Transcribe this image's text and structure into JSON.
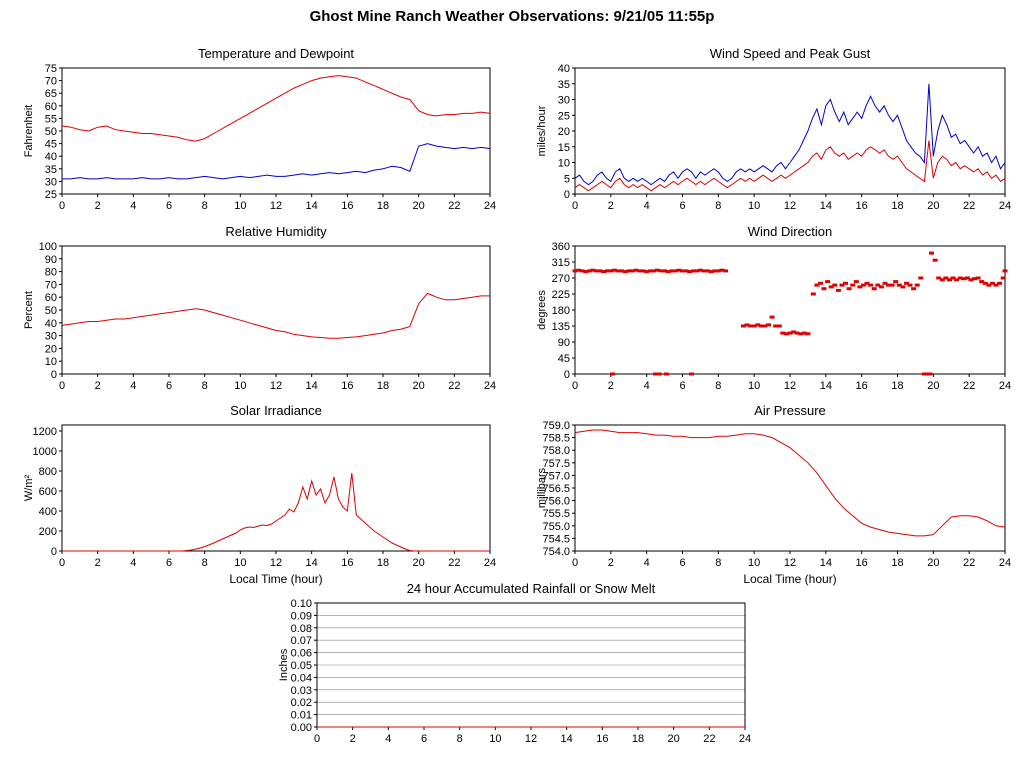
{
  "page": {
    "title": "Ghost Mine Ranch Weather Observations: 9/21/05 11:55p",
    "background": "#ffffff"
  },
  "colors": {
    "red": "#dd0000",
    "blue": "#0000cc",
    "axis": "#000000",
    "grid": "#888888"
  },
  "chart_data": [
    {
      "id": "temp-dew",
      "type": "line",
      "title": "Temperature and Dewpoint",
      "ylabel": "Fahrenheit",
      "xlabel": "",
      "xlim": [
        0,
        24
      ],
      "xtick": 2,
      "ylim": [
        25,
        75
      ],
      "ytick": 5,
      "ytick_decimals": 0,
      "x_unit": "hour",
      "series": [
        {
          "name": "Temperature",
          "color": "#dd0000",
          "x_start": 0,
          "x_step": 0.5,
          "values": [
            52,
            51.5,
            50.5,
            50,
            51.5,
            52,
            50.5,
            50,
            49.5,
            49,
            49,
            48.5,
            48,
            47.5,
            46.5,
            46,
            47,
            49,
            51,
            53,
            55,
            57,
            59,
            61,
            63,
            65,
            67,
            68.5,
            70,
            71,
            71.5,
            72,
            71.5,
            71,
            69.5,
            68,
            66.5,
            65,
            63.5,
            62.5,
            58,
            56.5,
            56,
            56.5,
            56.5,
            57,
            57,
            57.5,
            57
          ]
        },
        {
          "name": "Dewpoint",
          "color": "#0000cc",
          "x_start": 0,
          "x_step": 0.5,
          "values": [
            31,
            31,
            31.5,
            31,
            31,
            31.5,
            31,
            31,
            31,
            31.5,
            31,
            31,
            31.5,
            31,
            31,
            31.5,
            32,
            31.5,
            31,
            31.5,
            32,
            31.5,
            32,
            32.5,
            32,
            32,
            32.5,
            33,
            32.5,
            33,
            33.5,
            33,
            33.5,
            34,
            33.5,
            34.5,
            35,
            36,
            35.5,
            34,
            44,
            45,
            44,
            43.5,
            43,
            43.5,
            43,
            43.5,
            43
          ]
        }
      ]
    },
    {
      "id": "wind-speed",
      "type": "line",
      "title": "Wind Speed and Peak Gust",
      "ylabel": "miles/hour",
      "xlabel": "",
      "xlim": [
        0,
        24
      ],
      "xtick": 2,
      "ylim": [
        0,
        40
      ],
      "ytick": 5,
      "ytick_decimals": 0,
      "x_unit": "hour",
      "series": [
        {
          "name": "Peak Gust",
          "color": "#0000cc",
          "x_start": 0,
          "x_step": 0.25,
          "values": [
            5,
            6,
            4,
            3,
            4,
            6,
            7,
            5,
            4,
            7,
            8,
            5,
            4,
            5,
            4,
            5,
            4,
            3,
            4,
            5,
            4,
            6,
            7,
            5,
            7,
            8,
            7,
            5,
            7,
            6,
            7,
            8,
            7,
            5,
            4,
            5,
            7,
            8,
            7,
            8,
            7,
            8,
            9,
            8,
            7,
            9,
            10,
            8,
            10,
            12,
            14,
            17,
            20,
            24,
            27,
            22,
            28,
            30,
            26,
            23,
            26,
            22,
            24,
            26,
            24,
            28,
            31,
            28,
            26,
            28,
            25,
            23,
            25,
            21,
            17,
            15,
            13,
            12,
            10,
            35,
            12,
            20,
            25,
            22,
            18,
            19,
            16,
            17,
            15,
            13,
            15,
            12,
            13,
            10,
            12,
            8,
            10
          ]
        },
        {
          "name": "Wind Speed",
          "color": "#dd0000",
          "x_start": 0,
          "x_step": 0.25,
          "values": [
            2,
            3,
            2,
            1,
            2,
            3,
            4,
            3,
            2,
            4,
            5,
            3,
            2,
            3,
            2,
            3,
            2,
            1,
            2,
            3,
            2,
            3,
            4,
            3,
            4,
            5,
            4,
            3,
            4,
            3,
            4,
            5,
            4,
            3,
            2,
            3,
            4,
            5,
            4,
            5,
            4,
            5,
            6,
            5,
            4,
            5,
            6,
            5,
            6,
            7,
            8,
            9,
            10,
            12,
            13,
            11,
            14,
            15,
            13,
            12,
            13,
            11,
            12,
            13,
            12,
            14,
            15,
            14,
            13,
            14,
            12,
            11,
            12,
            10,
            8,
            7,
            6,
            5,
            4,
            17,
            5,
            10,
            12,
            11,
            9,
            10,
            8,
            9,
            8,
            7,
            8,
            6,
            7,
            5,
            6,
            4,
            5
          ]
        }
      ]
    },
    {
      "id": "humidity",
      "type": "line",
      "title": "Relative Humidity",
      "ylabel": "Percent",
      "xlabel": "",
      "xlim": [
        0,
        24
      ],
      "xtick": 2,
      "ylim": [
        0,
        100
      ],
      "ytick": 10,
      "ytick_decimals": 0,
      "x_unit": "hour",
      "series": [
        {
          "name": "Relative Humidity",
          "color": "#dd0000",
          "x_start": 0,
          "x_step": 0.5,
          "values": [
            38,
            39,
            40,
            41,
            41,
            42,
            43,
            43,
            44,
            45,
            46,
            47,
            48,
            49,
            50,
            51,
            50,
            48,
            46,
            44,
            42,
            40,
            38,
            36,
            34,
            33,
            31,
            30,
            29,
            28.5,
            28,
            28,
            28.5,
            29,
            30,
            31,
            32,
            34,
            35,
            37,
            55,
            63,
            60,
            58,
            58,
            59,
            60,
            61,
            61
          ]
        }
      ]
    },
    {
      "id": "wind-dir",
      "type": "scatter",
      "title": "Wind Direction",
      "ylabel": "degrees",
      "xlabel": "",
      "xlim": [
        0,
        24
      ],
      "xtick": 2,
      "ylim": [
        0,
        360
      ],
      "ytick": 45,
      "ytick_decimals": 0,
      "x_unit": "hour",
      "color": "#dd0000",
      "points": [
        [
          0,
          290
        ],
        [
          0.2,
          292
        ],
        [
          0.4,
          290
        ],
        [
          0.6,
          288
        ],
        [
          0.8,
          290
        ],
        [
          1,
          292
        ],
        [
          1.2,
          290
        ],
        [
          1.4,
          290
        ],
        [
          1.6,
          288
        ],
        [
          1.8,
          290
        ],
        [
          2,
          290
        ],
        [
          2.2,
          292
        ],
        [
          2.4,
          290
        ],
        [
          2.6,
          290
        ],
        [
          2.8,
          288
        ],
        [
          3,
          290
        ],
        [
          3.2,
          290
        ],
        [
          3.4,
          292
        ],
        [
          3.6,
          290
        ],
        [
          3.8,
          290
        ],
        [
          4,
          288
        ],
        [
          4.2,
          290
        ],
        [
          4.4,
          290
        ],
        [
          4.6,
          292
        ],
        [
          4.8,
          290
        ],
        [
          5,
          290
        ],
        [
          5.2,
          288
        ],
        [
          5.4,
          290
        ],
        [
          5.6,
          290
        ],
        [
          5.8,
          292
        ],
        [
          6,
          290
        ],
        [
          6.2,
          290
        ],
        [
          6.4,
          288
        ],
        [
          6.6,
          290
        ],
        [
          6.8,
          290
        ],
        [
          7,
          292
        ],
        [
          7.2,
          290
        ],
        [
          7.4,
          290
        ],
        [
          7.6,
          288
        ],
        [
          7.8,
          290
        ],
        [
          8,
          290
        ],
        [
          8.2,
          292
        ],
        [
          8.4,
          290
        ],
        [
          2.1,
          0
        ],
        [
          4.5,
          0
        ],
        [
          4.7,
          0
        ],
        [
          5.1,
          0
        ],
        [
          6.5,
          0
        ],
        [
          9.4,
          135
        ],
        [
          9.6,
          138
        ],
        [
          9.8,
          135
        ],
        [
          10,
          135
        ],
        [
          10.2,
          138
        ],
        [
          10.4,
          135
        ],
        [
          10.6,
          135
        ],
        [
          10.8,
          138
        ],
        [
          11,
          160
        ],
        [
          11.2,
          135
        ],
        [
          11.4,
          135
        ],
        [
          11.6,
          115
        ],
        [
          11.8,
          113
        ],
        [
          12,
          115
        ],
        [
          12.2,
          118
        ],
        [
          12.4,
          115
        ],
        [
          12.6,
          113
        ],
        [
          12.8,
          115
        ],
        [
          13,
          113
        ],
        [
          13.3,
          225
        ],
        [
          13.5,
          250
        ],
        [
          13.7,
          255
        ],
        [
          13.9,
          240
        ],
        [
          14.1,
          260
        ],
        [
          14.3,
          245
        ],
        [
          14.5,
          250
        ],
        [
          14.7,
          235
        ],
        [
          14.9,
          250
        ],
        [
          15.1,
          255
        ],
        [
          15.3,
          240
        ],
        [
          15.5,
          250
        ],
        [
          15.7,
          260
        ],
        [
          15.9,
          245
        ],
        [
          16.1,
          250
        ],
        [
          16.3,
          255
        ],
        [
          16.5,
          250
        ],
        [
          16.7,
          240
        ],
        [
          16.9,
          250
        ],
        [
          17.1,
          245
        ],
        [
          17.3,
          255
        ],
        [
          17.5,
          250
        ],
        [
          17.7,
          250
        ],
        [
          17.9,
          260
        ],
        [
          18.1,
          250
        ],
        [
          18.3,
          245
        ],
        [
          18.5,
          255
        ],
        [
          18.7,
          250
        ],
        [
          18.9,
          240
        ],
        [
          19.1,
          250
        ],
        [
          19.3,
          270
        ],
        [
          19.5,
          0
        ],
        [
          19.6,
          0
        ],
        [
          19.7,
          0
        ],
        [
          19.8,
          0
        ],
        [
          19.9,
          340
        ],
        [
          20.1,
          320
        ],
        [
          20.3,
          270
        ],
        [
          20.5,
          265
        ],
        [
          20.7,
          270
        ],
        [
          20.9,
          265
        ],
        [
          21.1,
          270
        ],
        [
          21.3,
          265
        ],
        [
          21.5,
          270
        ],
        [
          21.7,
          268
        ],
        [
          21.9,
          270
        ],
        [
          22.1,
          265
        ],
        [
          22.3,
          268
        ],
        [
          22.5,
          270
        ],
        [
          22.7,
          260
        ],
        [
          22.9,
          255
        ],
        [
          23.1,
          250
        ],
        [
          23.3,
          255
        ],
        [
          23.5,
          250
        ],
        [
          23.7,
          255
        ],
        [
          23.9,
          270
        ],
        [
          24,
          290
        ]
      ]
    },
    {
      "id": "solar",
      "type": "line",
      "title": "Solar Irradiance",
      "ylabel": "W/m²",
      "xlabel": "Local Time (hour)",
      "xlim": [
        0,
        24
      ],
      "xtick": 2,
      "ylim": [
        0,
        1260
      ],
      "ytick": 200,
      "ytick_decimals": 0,
      "x_unit": "hour",
      "series": [
        {
          "name": "Solar Irradiance",
          "color": "#dd0000",
          "x_start": 0,
          "x_step": 0.25,
          "values": [
            0,
            0,
            0,
            0,
            0,
            0,
            0,
            0,
            0,
            0,
            0,
            0,
            0,
            0,
            0,
            0,
            0,
            0,
            0,
            0,
            0,
            0,
            0,
            0,
            0,
            0,
            0,
            0,
            5,
            10,
            20,
            30,
            45,
            60,
            80,
            100,
            120,
            140,
            160,
            180,
            210,
            230,
            240,
            235,
            250,
            260,
            255,
            270,
            300,
            330,
            360,
            420,
            390,
            480,
            640,
            520,
            700,
            560,
            620,
            480,
            560,
            740,
            520,
            440,
            400,
            780,
            360,
            320,
            280,
            240,
            200,
            170,
            140,
            110,
            80,
            60,
            40,
            20,
            5,
            0,
            0,
            0,
            0,
            0,
            0,
            0,
            0,
            0,
            0,
            0,
            0,
            0,
            0,
            0,
            0,
            0,
            0
          ]
        }
      ]
    },
    {
      "id": "pressure",
      "type": "line",
      "title": "Air Pressure",
      "ylabel": "millibars",
      "xlabel": "Local Time (hour)",
      "xlim": [
        0,
        24
      ],
      "xtick": 2,
      "ylim": [
        754.0,
        759.0
      ],
      "ytick": 0.5,
      "ytick_decimals": 1,
      "x_unit": "hour",
      "series": [
        {
          "name": "Air Pressure",
          "color": "#dd0000",
          "x_start": 0,
          "x_step": 0.5,
          "values": [
            758.7,
            758.75,
            758.8,
            758.8,
            758.75,
            758.7,
            758.7,
            758.7,
            758.65,
            758.6,
            758.6,
            758.55,
            758.55,
            758.5,
            758.5,
            758.5,
            758.55,
            758.55,
            758.6,
            758.65,
            758.65,
            758.6,
            758.5,
            758.3,
            758.1,
            757.8,
            757.5,
            757.1,
            756.6,
            756.1,
            755.7,
            755.4,
            755.1,
            754.95,
            754.85,
            754.75,
            754.7,
            754.65,
            754.6,
            754.6,
            754.65,
            755.0,
            755.35,
            755.4,
            755.4,
            755.35,
            755.2,
            755.0,
            754.95
          ]
        }
      ]
    },
    {
      "id": "rain",
      "type": "line",
      "title": "24 hour Accumulated Rainfall or Snow Melt",
      "ylabel": "Inches",
      "xlabel": "",
      "xlim": [
        0,
        24
      ],
      "xtick": 2,
      "ylim": [
        0.0,
        0.1
      ],
      "ytick": 0.01,
      "ytick_decimals": 2,
      "grid": "horizontal",
      "x_unit": "hour",
      "series": [
        {
          "name": "Accumulated Rainfall",
          "color": "#dd0000",
          "x_start": 0,
          "x_step": 0.5,
          "values": [
            0,
            0,
            0,
            0,
            0,
            0,
            0,
            0,
            0,
            0,
            0,
            0,
            0,
            0,
            0,
            0,
            0,
            0,
            0,
            0,
            0,
            0,
            0,
            0,
            0,
            0,
            0,
            0,
            0,
            0,
            0,
            0,
            0,
            0,
            0,
            0,
            0,
            0,
            0,
            0,
            0,
            0,
            0,
            0,
            0,
            0,
            0,
            0,
            0
          ]
        }
      ]
    }
  ]
}
